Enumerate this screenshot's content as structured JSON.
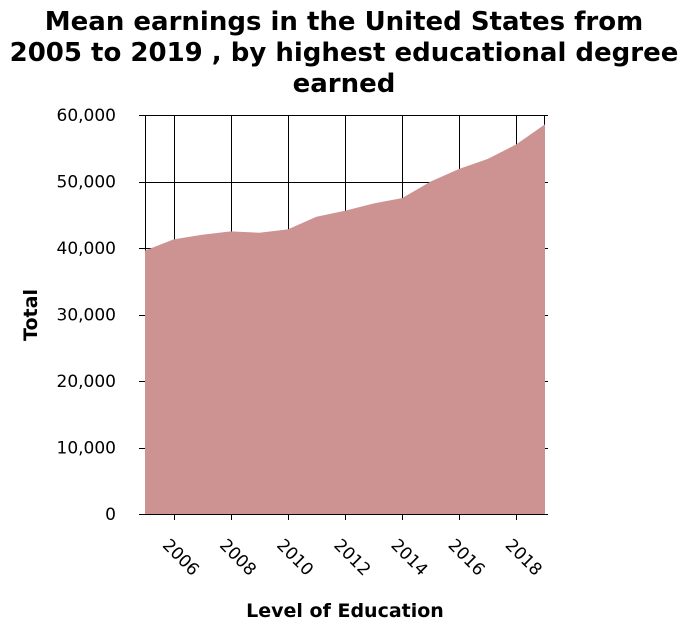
{
  "chart_data": {
    "type": "area",
    "title": "Mean earnings in the United States from 2005 to 2019 , by highest educational degree earned",
    "title_lines": [
      "Mean earnings in the United States from",
      "2005 to 2019 , by highest educational degree",
      "earned"
    ],
    "xlabel": "Level of Education",
    "ylabel": "Total",
    "x": [
      2005,
      2006,
      2007,
      2008,
      2009,
      2010,
      2011,
      2012,
      2013,
      2014,
      2015,
      2016,
      2017,
      2018,
      2019
    ],
    "series": [
      {
        "values": [
          39600,
          41300,
          42000,
          42500,
          42300,
          42800,
          44700,
          45600,
          46700,
          47500,
          50000,
          51900,
          53400,
          55600,
          58600
        ],
        "color": "#cd9393"
      }
    ],
    "xlim": [
      2005,
      2019
    ],
    "ylim": [
      0,
      60000
    ],
    "x_ticks": [
      2006,
      2008,
      2010,
      2012,
      2014,
      2016,
      2018
    ],
    "x_tick_labels": [
      "2006",
      "2008",
      "2010",
      "2012",
      "2014",
      "2016",
      "2018"
    ],
    "y_ticks": [
      0,
      10000,
      20000,
      30000,
      40000,
      50000,
      60000
    ],
    "y_tick_labels": [
      "0",
      "10,000",
      "20,000",
      "30,000",
      "40,000",
      "50,000",
      "60,000"
    ],
    "grid": true,
    "legend": "none"
  }
}
